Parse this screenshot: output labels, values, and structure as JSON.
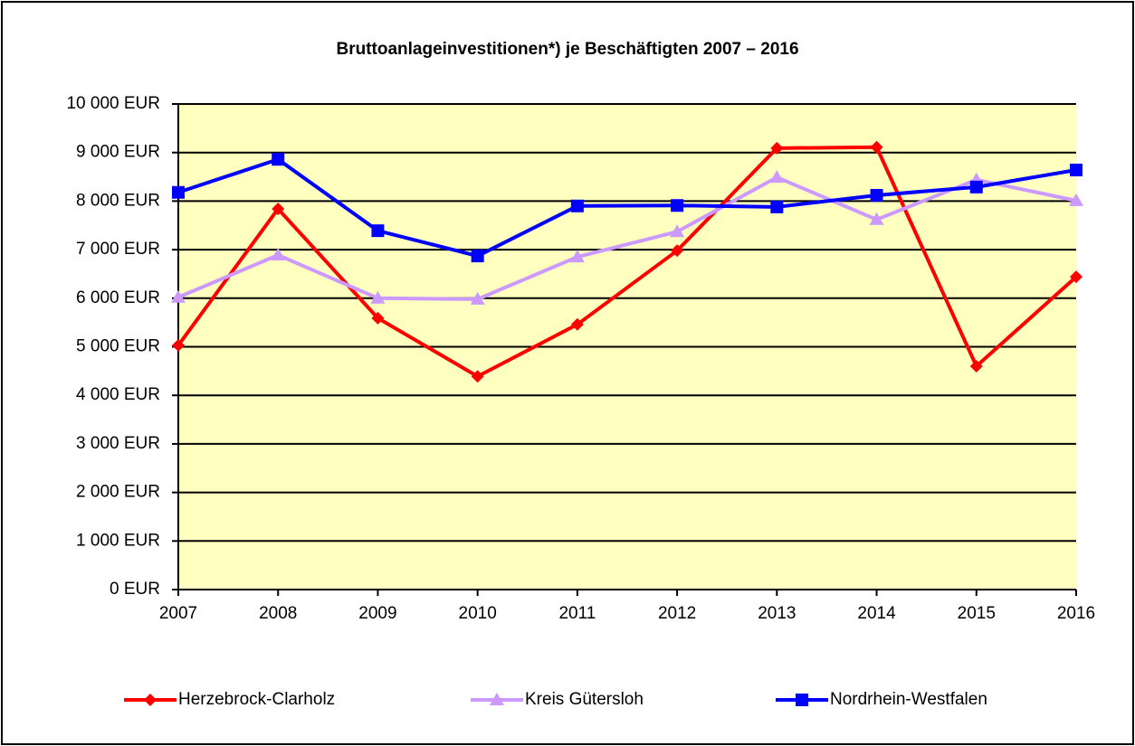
{
  "chart_data": {
    "type": "line",
    "title": "Bruttoanlageinvestitionen*) je Beschäftigten 2007 – 2016",
    "categories": [
      "2007",
      "2008",
      "2009",
      "2010",
      "2011",
      "2012",
      "2013",
      "2014",
      "2015",
      "2016"
    ],
    "series": [
      {
        "name": "Herzebrock-Clarholz",
        "color": "#ff0000",
        "marker": "diamond",
        "values": [
          5030,
          7840,
          5590,
          4390,
          5460,
          6980,
          9090,
          9110,
          4600,
          6440
        ]
      },
      {
        "name": "Kreis Gütersloh",
        "color": "#cc99ff",
        "marker": "triangle",
        "values": [
          6020,
          6890,
          6000,
          5980,
          6850,
          7370,
          8490,
          7620,
          8440,
          8010
        ]
      },
      {
        "name": "Nordrhein-Westfalen",
        "color": "#0000ff",
        "marker": "square",
        "values": [
          8180,
          8860,
          7390,
          6870,
          7900,
          7910,
          7880,
          8120,
          8290,
          8640
        ]
      }
    ],
    "ylim": [
      0,
      10000
    ],
    "yticks": [
      {
        "value": 0,
        "label": "0 EUR"
      },
      {
        "value": 1000,
        "label": "1 000 EUR"
      },
      {
        "value": 2000,
        "label": "2 000 EUR"
      },
      {
        "value": 3000,
        "label": "3 000 EUR"
      },
      {
        "value": 4000,
        "label": "4 000 EUR"
      },
      {
        "value": 5000,
        "label": "5 000 EUR"
      },
      {
        "value": 6000,
        "label": "6 000 EUR"
      },
      {
        "value": 7000,
        "label": "7 000 EUR"
      },
      {
        "value": 8000,
        "label": "8 000 EUR"
      },
      {
        "value": 9000,
        "label": "9 000 EUR"
      },
      {
        "value": 10000,
        "label": "10 000 EUR"
      }
    ],
    "grid": true,
    "legend": "bottom",
    "plot_background": "#ffffc0"
  }
}
